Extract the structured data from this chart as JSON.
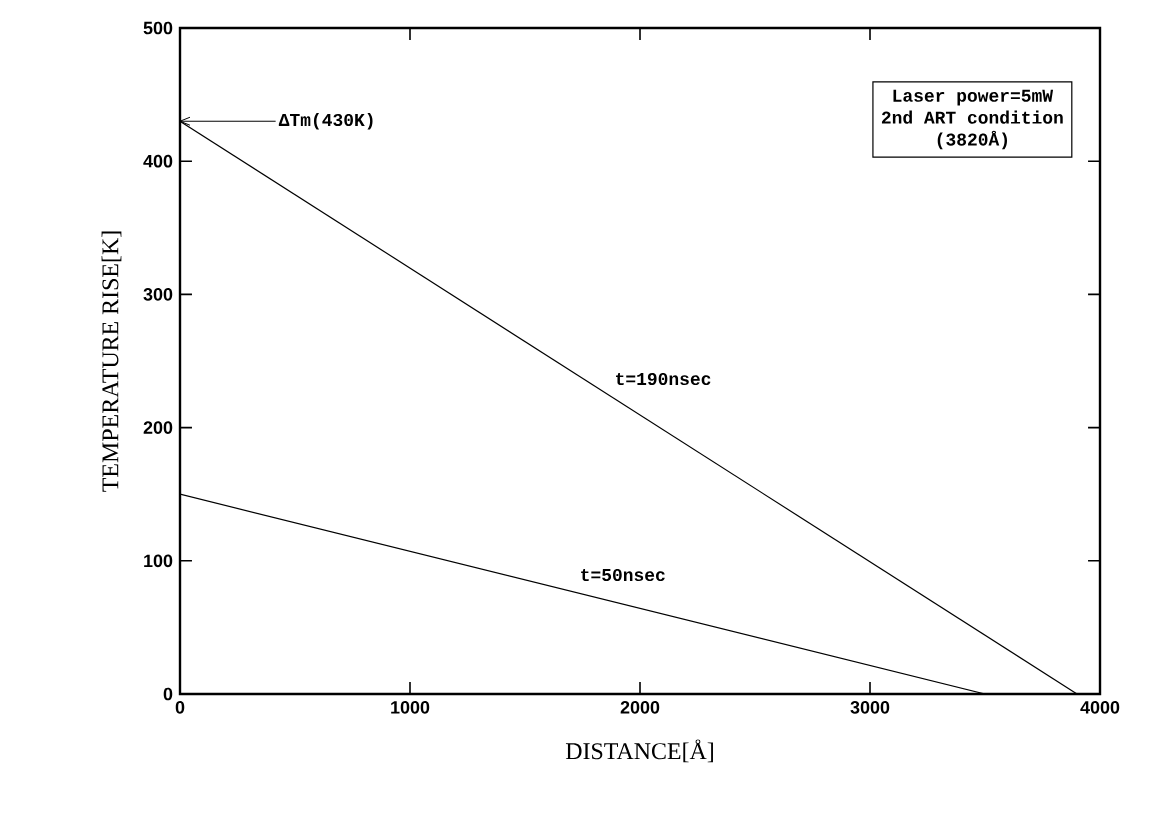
{
  "chart_data": {
    "type": "line",
    "xlabel": "DISTANCE[Å]",
    "ylabel": "TEMPERATURE RISE[K]",
    "xlim": [
      0,
      4000
    ],
    "ylim": [
      0,
      500
    ],
    "xticks": [
      0,
      1000,
      2000,
      3000,
      4000
    ],
    "yticks": [
      0,
      100,
      200,
      300,
      400,
      500
    ],
    "series": [
      {
        "name": "t=190nsec",
        "color": "#000000",
        "x": [
          0,
          3900
        ],
        "values": [
          430,
          0
        ]
      },
      {
        "name": "t=50nsec",
        "color": "#000000",
        "x": [
          0,
          3500
        ],
        "values": [
          150,
          0
        ]
      }
    ],
    "annotations": [
      {
        "text": "ΔTm(430K)",
        "x": 0,
        "y": 430
      },
      "Laser power=5mW",
      "2nd ART condition",
      "(3820Å)"
    ],
    "grid": false,
    "legend": false,
    "marker": "none",
    "line_style": "solid"
  }
}
